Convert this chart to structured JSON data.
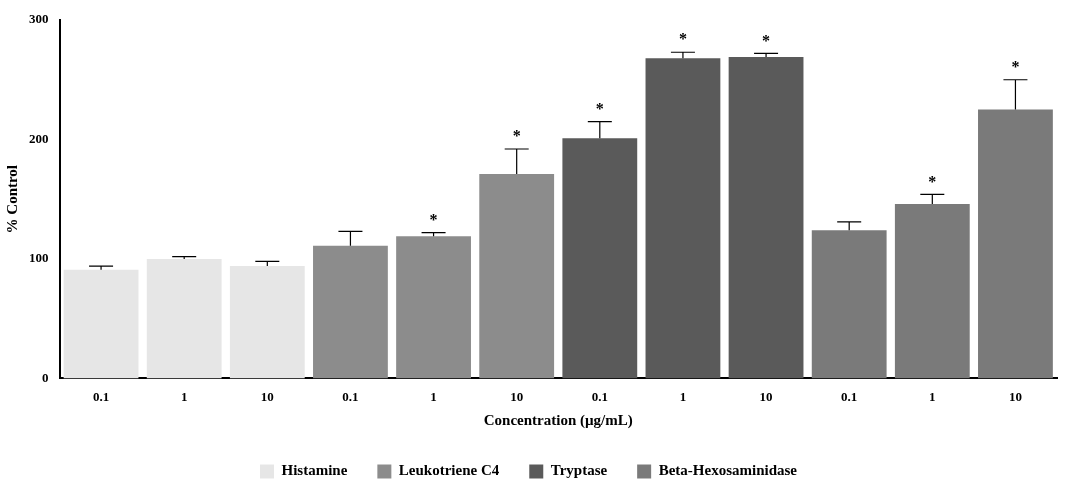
{
  "chart_data": {
    "type": "bar",
    "xlabel": "Concentration (µg/mL)",
    "ylabel": "% Control",
    "categories": [
      "0.1",
      "1",
      "10",
      "0.1",
      "1",
      "10",
      "0.1",
      "1",
      "10",
      "0.1",
      "1",
      "10"
    ],
    "ylim": [
      0,
      300
    ],
    "yticks": [
      0,
      100,
      200,
      300
    ],
    "grid": false,
    "legend": "bottom",
    "series": [
      {
        "name": "Histamine",
        "color": "#e6e6e6",
        "values": [
          91,
          100,
          94,
          null,
          null,
          null,
          null,
          null,
          null,
          null,
          null,
          null
        ],
        "errors": [
          [
            91,
            94
          ],
          [
            100,
            102
          ],
          [
            94,
            98
          ],
          null,
          null,
          null,
          null,
          null,
          null,
          null,
          null,
          null
        ],
        "value_labels": [
          null,
          null,
          null,
          null,
          null,
          null,
          null,
          null,
          null,
          null,
          null,
          null
        ]
      },
      {
        "name": "Leukotriene C4",
        "color": "#8c8c8c",
        "values": [
          null,
          null,
          null,
          111,
          119,
          171,
          null,
          null,
          null,
          null,
          null,
          null
        ],
        "errors": [
          null,
          null,
          null,
          [
            111,
            123
          ],
          [
            119,
            122
          ],
          [
            171,
            192
          ],
          null,
          null,
          null,
          null,
          null,
          null
        ],
        "value_labels": [
          null,
          null,
          null,
          null,
          "*",
          "*",
          null,
          null,
          null,
          null,
          null,
          null
        ]
      },
      {
        "name": "Tryptase",
        "color": "#5a5a5a",
        "values": [
          null,
          null,
          null,
          null,
          null,
          null,
          201,
          268,
          269,
          null,
          null,
          null
        ],
        "errors": [
          null,
          null,
          null,
          null,
          null,
          null,
          [
            201,
            215
          ],
          [
            268,
            273
          ],
          [
            269,
            272
          ],
          null,
          null,
          null
        ],
        "value_labels": [
          null,
          null,
          null,
          null,
          null,
          null,
          "*",
          "*",
          "*",
          null,
          null,
          null
        ]
      },
      {
        "name": "Beta-Hexosaminidase",
        "color": "#7a7a7a",
        "values": [
          null,
          null,
          null,
          null,
          null,
          null,
          null,
          null,
          null,
          124,
          146,
          225
        ],
        "errors": [
          null,
          null,
          null,
          null,
          null,
          null,
          null,
          null,
          null,
          [
            124,
            131
          ],
          [
            146,
            154
          ],
          [
            225,
            250
          ]
        ],
        "value_labels": [
          null,
          null,
          null,
          null,
          null,
          null,
          null,
          null,
          null,
          null,
          "*",
          "*"
        ]
      }
    ]
  }
}
